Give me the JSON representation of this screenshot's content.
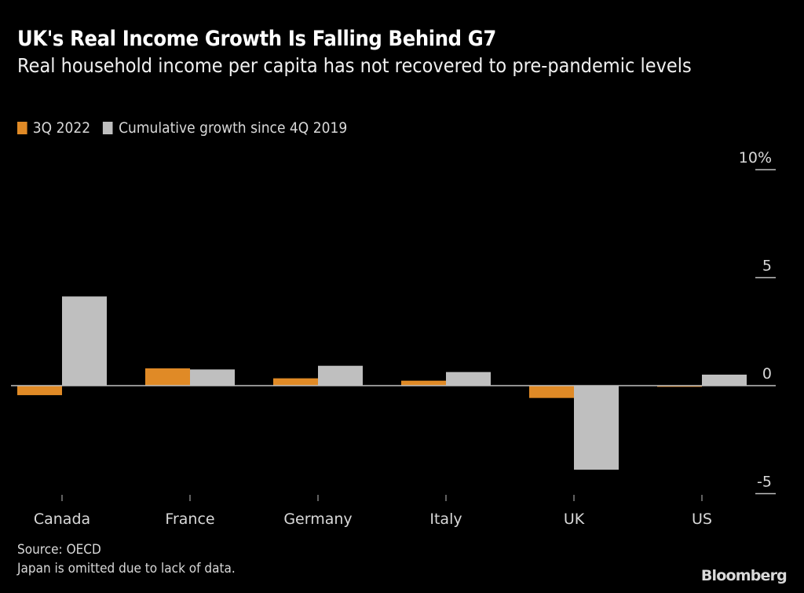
{
  "chart_data": {
    "type": "bar",
    "title": "UK's Real Income Growth Is Falling Behind G7",
    "subtitle": "Real household income per capita has not recovered to pre-pandemic levels",
    "categories": [
      "Canada",
      "France",
      "Germany",
      "Italy",
      "UK",
      "US"
    ],
    "series": [
      {
        "name": "3Q 2022",
        "color": "#E08A26",
        "values": [
          -0.44,
          0.8,
          0.34,
          0.23,
          -0.57,
          -0.05
        ]
      },
      {
        "name": "Cumulative growth since 4Q 2019",
        "color": "#BFBFBF",
        "values": [
          4.13,
          0.75,
          0.92,
          0.63,
          -3.89,
          0.51
        ]
      }
    ],
    "xlabel": "",
    "ylabel": "",
    "ylim": [
      -5,
      10
    ],
    "yticks": [
      {
        "value": 10,
        "label": "10%"
      },
      {
        "value": 5,
        "label": "5"
      },
      {
        "value": 0,
        "label": "0"
      },
      {
        "value": -5,
        "label": "-5"
      }
    ],
    "y_axis_side": "right",
    "legend_position": "top-left",
    "grid": false
  },
  "footer": {
    "source": "Source: OECD",
    "note": "Japan is omitted due to lack of data.",
    "brand": "Bloomberg"
  }
}
